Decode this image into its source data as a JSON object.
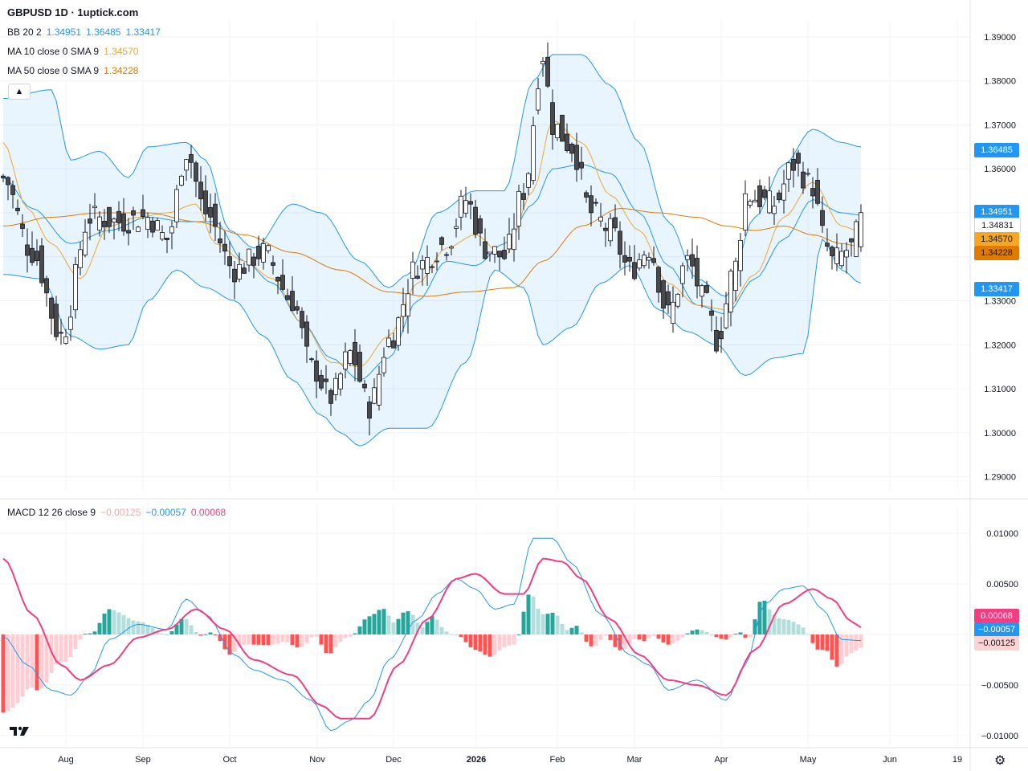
{
  "header": {
    "title": "GBPUSD 1D · 1uptick.com"
  },
  "legends": {
    "bb": {
      "label": "BB 20 2",
      "values": [
        "1.34951",
        "1.36485",
        "1.33417"
      ],
      "color": "#2196f3"
    },
    "ma10": {
      "label": "MA 10 close 0 SMA 9",
      "value": "1.34570",
      "color": "#f0a830"
    },
    "ma50": {
      "label": "MA 50 close 0 SMA 9",
      "value": "1.34228",
      "color": "#e07b00"
    },
    "macd": {
      "label": "MACD 12 26 close 9",
      "values": [
        "−0.00125",
        "−0.00057",
        "0.00068"
      ],
      "colors": [
        "#f4a7a7",
        "#2196f3",
        "#f23d80"
      ]
    }
  },
  "price_tags": {
    "bb_upper": {
      "text": "1.36485",
      "bg": "#2196f3",
      "fg": "#ffffff"
    },
    "bb_mid": {
      "text": "1.34951",
      "bg": "#2196f3",
      "fg": "#ffffff"
    },
    "last": {
      "text": "1.34831",
      "bg": "#ffffff",
      "fg": "#131722"
    },
    "ma10": {
      "text": "1.34570",
      "bg": "#f5a623",
      "fg": "#131722"
    },
    "ma50": {
      "text": "1.34228",
      "bg": "#e07b00",
      "fg": "#131722"
    },
    "bb_lower": {
      "text": "1.33417",
      "bg": "#2196f3",
      "fg": "#ffffff"
    },
    "macd_signal": {
      "text": "0.00068",
      "bg": "#f23d80",
      "fg": "#ffffff"
    },
    "macd_line": {
      "text": "−0.00057",
      "bg": "#2196f3",
      "fg": "#ffffff"
    },
    "macd_hist": {
      "text": "−0.00125",
      "bg": "#fbd3d3",
      "fg": "#131722"
    }
  },
  "icons": {
    "collapse": "chevron-up-icon",
    "logo": "tradingview-logo-icon",
    "settings": "gear-icon"
  },
  "chart_data": [
    {
      "type": "candlestick",
      "title": "GBPUSD 1D",
      "ylim": [
        1.287,
        1.392
      ],
      "y_ticks": [
        "1.39000",
        "1.38000",
        "1.37000",
        "1.36000",
        "1.35000",
        "1.34000",
        "1.33000",
        "1.32000",
        "1.31000",
        "1.30000",
        "1.29000"
      ],
      "y_tick_values": [
        1.39,
        1.38,
        1.37,
        1.36,
        1.35,
        1.34,
        1.33,
        1.32,
        1.31,
        1.3,
        1.29
      ],
      "x_labels": [
        "Aug",
        "Sep",
        "Oct",
        "Nov",
        "Dec",
        "2026",
        "Feb",
        "Mar",
        "Apr",
        "May",
        "Jun",
        "19"
      ],
      "bb_upper_anchors": [
        [
          0,
          1.376
        ],
        [
          10,
          1.378
        ],
        [
          14,
          1.362
        ],
        [
          20,
          1.364
        ],
        [
          26,
          1.358
        ],
        [
          30,
          1.365
        ],
        [
          38,
          1.366
        ],
        [
          42,
          1.362
        ],
        [
          47,
          1.346
        ],
        [
          52,
          1.342
        ],
        [
          60,
          1.352
        ],
        [
          66,
          1.35
        ],
        [
          74,
          1.339
        ],
        [
          80,
          1.333
        ],
        [
          84,
          1.336
        ],
        [
          90,
          1.35
        ],
        [
          98,
          1.355
        ],
        [
          104,
          1.355
        ],
        [
          110,
          1.38
        ],
        [
          114,
          1.386
        ],
        [
          120,
          1.386
        ],
        [
          126,
          1.379
        ],
        [
          132,
          1.366
        ],
        [
          138,
          1.348
        ],
        [
          144,
          1.335
        ],
        [
          150,
          1.331
        ],
        [
          156,
          1.349
        ],
        [
          162,
          1.361
        ],
        [
          168,
          1.369
        ],
        [
          174,
          1.366
        ],
        [
          178,
          1.365
        ]
      ],
      "bb_lower_anchors": [
        [
          0,
          1.336
        ],
        [
          8,
          1.335
        ],
        [
          14,
          1.322
        ],
        [
          20,
          1.319
        ],
        [
          26,
          1.32
        ],
        [
          30,
          1.33
        ],
        [
          36,
          1.337
        ],
        [
          42,
          1.333
        ],
        [
          48,
          1.33
        ],
        [
          54,
          1.322
        ],
        [
          60,
          1.312
        ],
        [
          66,
          1.304
        ],
        [
          70,
          1.3
        ],
        [
          74,
          1.297
        ],
        [
          80,
          1.301
        ],
        [
          88,
          1.301
        ],
        [
          96,
          1.316
        ],
        [
          102,
          1.337
        ],
        [
          108,
          1.333
        ],
        [
          112,
          1.32
        ],
        [
          118,
          1.324
        ],
        [
          124,
          1.334
        ],
        [
          130,
          1.338
        ],
        [
          136,
          1.328
        ],
        [
          142,
          1.323
        ],
        [
          148,
          1.32
        ],
        [
          154,
          1.313
        ],
        [
          160,
          1.317
        ],
        [
          166,
          1.318
        ],
        [
          170,
          1.344
        ],
        [
          174,
          1.337
        ],
        [
          178,
          1.334
        ]
      ],
      "bb_mid_anchors": [
        [
          0,
          1.358
        ],
        [
          6,
          1.351
        ],
        [
          14,
          1.343
        ],
        [
          22,
          1.346
        ],
        [
          30,
          1.349
        ],
        [
          38,
          1.348
        ],
        [
          44,
          1.348
        ],
        [
          50,
          1.339
        ],
        [
          56,
          1.334
        ],
        [
          62,
          1.325
        ],
        [
          68,
          1.317
        ],
        [
          74,
          1.312
        ],
        [
          80,
          1.317
        ],
        [
          86,
          1.33
        ],
        [
          92,
          1.339
        ],
        [
          98,
          1.338
        ],
        [
          104,
          1.343
        ],
        [
          110,
          1.352
        ],
        [
          114,
          1.36
        ],
        [
          120,
          1.361
        ],
        [
          126,
          1.359
        ],
        [
          132,
          1.35
        ],
        [
          138,
          1.338
        ],
        [
          144,
          1.329
        ],
        [
          150,
          1.327
        ],
        [
          156,
          1.335
        ],
        [
          162,
          1.344
        ],
        [
          168,
          1.353
        ],
        [
          174,
          1.35
        ],
        [
          178,
          1.3495
        ]
      ],
      "ma10_anchors": [
        [
          0,
          1.366
        ],
        [
          5,
          1.351
        ],
        [
          10,
          1.343
        ],
        [
          16,
          1.335
        ],
        [
          22,
          1.347
        ],
        [
          28,
          1.349
        ],
        [
          34,
          1.35
        ],
        [
          40,
          1.352
        ],
        [
          44,
          1.343
        ],
        [
          50,
          1.339
        ],
        [
          56,
          1.335
        ],
        [
          62,
          1.325
        ],
        [
          68,
          1.316
        ],
        [
          74,
          1.315
        ],
        [
          80,
          1.322
        ],
        [
          86,
          1.334
        ],
        [
          92,
          1.342
        ],
        [
          98,
          1.345
        ],
        [
          104,
          1.34
        ],
        [
          110,
          1.355
        ],
        [
          114,
          1.371
        ],
        [
          120,
          1.366
        ],
        [
          126,
          1.354
        ],
        [
          132,
          1.346
        ],
        [
          138,
          1.334
        ],
        [
          144,
          1.329
        ],
        [
          150,
          1.328
        ],
        [
          156,
          1.336
        ],
        [
          162,
          1.349
        ],
        [
          168,
          1.357
        ],
        [
          174,
          1.347
        ],
        [
          178,
          1.3457
        ]
      ],
      "ma50_anchors": [
        [
          0,
          1.347
        ],
        [
          10,
          1.349
        ],
        [
          20,
          1.35
        ],
        [
          30,
          1.35
        ],
        [
          40,
          1.348
        ],
        [
          50,
          1.345
        ],
        [
          60,
          1.341
        ],
        [
          70,
          1.337
        ],
        [
          80,
          1.332
        ],
        [
          88,
          1.331
        ],
        [
          96,
          1.332
        ],
        [
          106,
          1.333
        ],
        [
          112,
          1.339
        ],
        [
          120,
          1.347
        ],
        [
          128,
          1.351
        ],
        [
          136,
          1.35
        ],
        [
          144,
          1.349
        ],
        [
          150,
          1.347
        ],
        [
          156,
          1.346
        ],
        [
          162,
          1.347
        ],
        [
          168,
          1.345
        ],
        [
          174,
          1.343
        ],
        [
          178,
          1.3423
        ]
      ],
      "close_anchors": [
        [
          0,
          1.358
        ],
        [
          6,
          1.341
        ],
        [
          12,
          1.322
        ],
        [
          18,
          1.349
        ],
        [
          24,
          1.348
        ],
        [
          30,
          1.349
        ],
        [
          34,
          1.344
        ],
        [
          38,
          1.364
        ],
        [
          42,
          1.35
        ],
        [
          48,
          1.337
        ],
        [
          54,
          1.341
        ],
        [
          60,
          1.33
        ],
        [
          64,
          1.315
        ],
        [
          68,
          1.308
        ],
        [
          72,
          1.318
        ],
        [
          76,
          1.306
        ],
        [
          80,
          1.321
        ],
        [
          86,
          1.338
        ],
        [
          92,
          1.343
        ],
        [
          96,
          1.353
        ],
        [
          100,
          1.342
        ],
        [
          104,
          1.34
        ],
        [
          108,
          1.355
        ],
        [
          112,
          1.386
        ],
        [
          114,
          1.37
        ],
        [
          118,
          1.365
        ],
        [
          122,
          1.35
        ],
        [
          126,
          1.346
        ],
        [
          130,
          1.337
        ],
        [
          134,
          1.342
        ],
        [
          138,
          1.327
        ],
        [
          142,
          1.339
        ],
        [
          146,
          1.329
        ],
        [
          148,
          1.321
        ],
        [
          152,
          1.338
        ],
        [
          154,
          1.354
        ],
        [
          160,
          1.352
        ],
        [
          164,
          1.361
        ],
        [
          168,
          1.356
        ],
        [
          170,
          1.345
        ],
        [
          172,
          1.339
        ],
        [
          176,
          1.342
        ],
        [
          178,
          1.3483
        ]
      ]
    },
    {
      "type": "macd",
      "ylim": [
        -0.0111,
        0.0119
      ],
      "y_ticks": [
        "0.01000",
        "0.00500",
        "−0.00500",
        "−0.01000"
      ],
      "y_tick_values": [
        0.01,
        0.005,
        -0.005,
        -0.01
      ],
      "macd_anchors": [
        [
          0,
          -0.0002
        ],
        [
          5,
          -0.003
        ],
        [
          10,
          -0.0055
        ],
        [
          14,
          -0.006
        ],
        [
          18,
          -0.004
        ],
        [
          22,
          -0.0005
        ],
        [
          28,
          0.001
        ],
        [
          34,
          0.0005
        ],
        [
          38,
          0.0035
        ],
        [
          42,
          0.002
        ],
        [
          48,
          -0.002
        ],
        [
          52,
          -0.0035
        ],
        [
          58,
          -0.0045
        ],
        [
          64,
          -0.0065
        ],
        [
          68,
          -0.0095
        ],
        [
          72,
          -0.0085
        ],
        [
          76,
          -0.0065
        ],
        [
          80,
          -0.0025
        ],
        [
          86,
          0.0015
        ],
        [
          90,
          0.004
        ],
        [
          94,
          0.0055
        ],
        [
          98,
          0.0045
        ],
        [
          102,
          0.0025
        ],
        [
          106,
          0.003
        ],
        [
          110,
          0.0095
        ],
        [
          114,
          0.0095
        ],
        [
          118,
          0.007
        ],
        [
          124,
          0.002
        ],
        [
          130,
          -0.002
        ],
        [
          134,
          -0.003
        ],
        [
          138,
          -0.0055
        ],
        [
          144,
          -0.0045
        ],
        [
          150,
          -0.0065
        ],
        [
          154,
          -0.003
        ],
        [
          158,
          0.003
        ],
        [
          162,
          0.0045
        ],
        [
          166,
          0.0048
        ],
        [
          170,
          0.0025
        ],
        [
          174,
          -0.0005
        ],
        [
          178,
          -0.0006
        ]
      ],
      "signal_anchors": [
        [
          0,
          0.0075
        ],
        [
          6,
          0.002
        ],
        [
          12,
          -0.003
        ],
        [
          16,
          -0.0045
        ],
        [
          22,
          -0.003
        ],
        [
          28,
          -0.0003
        ],
        [
          34,
          0.0005
        ],
        [
          40,
          0.0025
        ],
        [
          46,
          0.0005
        ],
        [
          52,
          -0.0025
        ],
        [
          60,
          -0.004
        ],
        [
          66,
          -0.007
        ],
        [
          70,
          -0.0083
        ],
        [
          76,
          -0.0083
        ],
        [
          82,
          -0.003
        ],
        [
          88,
          0.0015
        ],
        [
          94,
          0.0055
        ],
        [
          98,
          0.006
        ],
        [
          104,
          0.004
        ],
        [
          108,
          0.004
        ],
        [
          112,
          0.0075
        ],
        [
          116,
          0.0072
        ],
        [
          120,
          0.0055
        ],
        [
          126,
          0.0015
        ],
        [
          132,
          -0.002
        ],
        [
          138,
          -0.0045
        ],
        [
          144,
          -0.005
        ],
        [
          150,
          -0.006
        ],
        [
          156,
          -0.0015
        ],
        [
          162,
          0.003
        ],
        [
          168,
          0.0045
        ],
        [
          172,
          0.0035
        ],
        [
          176,
          0.0013
        ],
        [
          178,
          0.0007
        ]
      ]
    }
  ]
}
